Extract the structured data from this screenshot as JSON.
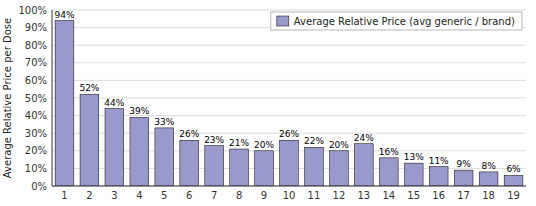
{
  "chart_data": {
    "type": "bar",
    "y_label": "Average Relative Price per Dose",
    "categories": [
      "1",
      "2",
      "3",
      "4",
      "5",
      "6",
      "7",
      "8",
      "9",
      "10",
      "11",
      "12",
      "13",
      "14",
      "15",
      "16",
      "17",
      "18",
      "19"
    ],
    "series": [
      {
        "name": "Average Relative Price (avg generic / brand)",
        "color": "#9999cc",
        "values": [
          94,
          52,
          44,
          39,
          33,
          26,
          23,
          21,
          20,
          26,
          22,
          20,
          24,
          16,
          13,
          11,
          9,
          8,
          6
        ],
        "value_labels": [
          "94%",
          "52%",
          "44%",
          "39%",
          "33%",
          "26%",
          "23%",
          "21%",
          "20%",
          "26%",
          "22%",
          "20%",
          "24%",
          "16%",
          "13%",
          "11%",
          "9%",
          "8%",
          "6%"
        ]
      }
    ],
    "ylim": [
      0,
      100
    ],
    "yticks": [
      {
        "value": 0,
        "label": "0%"
      },
      {
        "value": 10,
        "label": "10%"
      },
      {
        "value": 20,
        "label": "20%"
      },
      {
        "value": 30,
        "label": "30%"
      },
      {
        "value": 40,
        "label": "40%"
      },
      {
        "value": 50,
        "label": "50%"
      },
      {
        "value": 60,
        "label": "60%"
      },
      {
        "value": 70,
        "label": "70%"
      },
      {
        "value": 80,
        "label": "80%"
      },
      {
        "value": 90,
        "label": "90%"
      },
      {
        "value": 100,
        "label": "100%"
      }
    ],
    "grid": true,
    "data_labels": true,
    "legend": "upper right"
  }
}
